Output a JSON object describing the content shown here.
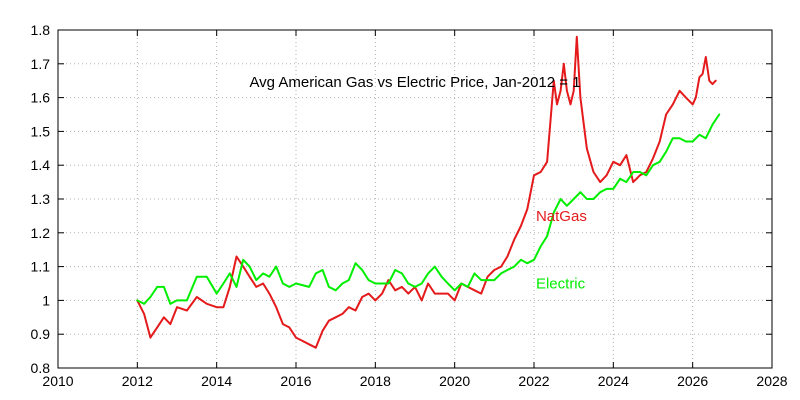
{
  "chart_data": {
    "type": "line",
    "title": "Avg American Gas vs Electric Price, Jan-2012 = 1",
    "xlabel": "",
    "ylabel": "",
    "xlim": [
      2010,
      2028
    ],
    "ylim": [
      0.8,
      1.8
    ],
    "x_ticks": [
      2010,
      2012,
      2014,
      2016,
      2018,
      2020,
      2022,
      2024,
      2026,
      2028
    ],
    "y_ticks": [
      0.8,
      0.9,
      1,
      1.1,
      1.2,
      1.3,
      1.4,
      1.5,
      1.6,
      1.7,
      1.8
    ],
    "y_tick_labels": [
      "0.8",
      "0.9",
      "1",
      "1.1",
      "1.2",
      "1.3",
      "1.4",
      "1.5",
      "1.6",
      "1.7",
      "1.8"
    ],
    "grid": true,
    "legend": "inline labels",
    "series": [
      {
        "name": "NatGas",
        "color": "#e41a1c",
        "label_at": [
          2022.05,
          1.25
        ],
        "points": [
          [
            2012.0,
            1.0
          ],
          [
            2012.17,
            0.96
          ],
          [
            2012.33,
            0.89
          ],
          [
            2012.5,
            0.92
          ],
          [
            2012.67,
            0.95
          ],
          [
            2012.83,
            0.93
          ],
          [
            2013.0,
            0.98
          ],
          [
            2013.25,
            0.97
          ],
          [
            2013.5,
            1.01
          ],
          [
            2013.75,
            0.99
          ],
          [
            2014.0,
            0.98
          ],
          [
            2014.17,
            0.98
          ],
          [
            2014.33,
            1.04
          ],
          [
            2014.5,
            1.13
          ],
          [
            2014.67,
            1.1
          ],
          [
            2014.83,
            1.07
          ],
          [
            2015.0,
            1.04
          ],
          [
            2015.17,
            1.05
          ],
          [
            2015.33,
            1.02
          ],
          [
            2015.5,
            0.98
          ],
          [
            2015.67,
            0.93
          ],
          [
            2015.83,
            0.92
          ],
          [
            2016.0,
            0.89
          ],
          [
            2016.17,
            0.88
          ],
          [
            2016.33,
            0.87
          ],
          [
            2016.5,
            0.86
          ],
          [
            2016.67,
            0.91
          ],
          [
            2016.83,
            0.94
          ],
          [
            2017.0,
            0.95
          ],
          [
            2017.17,
            0.96
          ],
          [
            2017.33,
            0.98
          ],
          [
            2017.5,
            0.97
          ],
          [
            2017.67,
            1.01
          ],
          [
            2017.83,
            1.02
          ],
          [
            2018.0,
            1.0
          ],
          [
            2018.17,
            1.02
          ],
          [
            2018.33,
            1.06
          ],
          [
            2018.5,
            1.03
          ],
          [
            2018.67,
            1.04
          ],
          [
            2018.83,
            1.02
          ],
          [
            2019.0,
            1.04
          ],
          [
            2019.17,
            1.0
          ],
          [
            2019.33,
            1.05
          ],
          [
            2019.5,
            1.02
          ],
          [
            2019.67,
            1.02
          ],
          [
            2019.83,
            1.02
          ],
          [
            2020.0,
            1.0
          ],
          [
            2020.17,
            1.05
          ],
          [
            2020.33,
            1.04
          ],
          [
            2020.5,
            1.03
          ],
          [
            2020.67,
            1.02
          ],
          [
            2020.83,
            1.07
          ],
          [
            2021.0,
            1.09
          ],
          [
            2021.17,
            1.1
          ],
          [
            2021.33,
            1.13
          ],
          [
            2021.5,
            1.18
          ],
          [
            2021.67,
            1.22
          ],
          [
            2021.83,
            1.27
          ],
          [
            2022.0,
            1.37
          ],
          [
            2022.17,
            1.38
          ],
          [
            2022.33,
            1.41
          ],
          [
            2022.5,
            1.65
          ],
          [
            2022.58,
            1.58
          ],
          [
            2022.67,
            1.62
          ],
          [
            2022.75,
            1.7
          ],
          [
            2022.83,
            1.62
          ],
          [
            2022.92,
            1.58
          ],
          [
            2023.0,
            1.62
          ],
          [
            2023.08,
            1.78
          ],
          [
            2023.17,
            1.6
          ],
          [
            2023.33,
            1.45
          ],
          [
            2023.5,
            1.38
          ],
          [
            2023.67,
            1.35
          ],
          [
            2023.83,
            1.37
          ],
          [
            2024.0,
            1.41
          ],
          [
            2024.17,
            1.4
          ],
          [
            2024.33,
            1.43
          ],
          [
            2024.5,
            1.35
          ],
          [
            2024.67,
            1.37
          ],
          [
            2024.83,
            1.38
          ],
          [
            2025.0,
            1.42
          ],
          [
            2025.17,
            1.47
          ],
          [
            2025.33,
            1.55
          ],
          [
            2025.5,
            1.58
          ],
          [
            2025.67,
            1.62
          ],
          [
            2025.83,
            1.6
          ],
          [
            2026.0,
            1.58
          ],
          [
            2026.08,
            1.6
          ],
          [
            2026.17,
            1.66
          ],
          [
            2026.25,
            1.67
          ],
          [
            2026.33,
            1.72
          ],
          [
            2026.42,
            1.65
          ],
          [
            2026.5,
            1.64
          ],
          [
            2026.58,
            1.65
          ]
        ]
      },
      {
        "name": "Electric",
        "color": "#00ee00",
        "label_at": [
          2022.05,
          1.05
        ],
        "points": [
          [
            2012.0,
            1.0
          ],
          [
            2012.17,
            0.99
          ],
          [
            2012.33,
            1.01
          ],
          [
            2012.5,
            1.04
          ],
          [
            2012.67,
            1.04
          ],
          [
            2012.83,
            0.99
          ],
          [
            2013.0,
            1.0
          ],
          [
            2013.25,
            1.0
          ],
          [
            2013.5,
            1.07
          ],
          [
            2013.75,
            1.07
          ],
          [
            2014.0,
            1.02
          ],
          [
            2014.17,
            1.05
          ],
          [
            2014.33,
            1.08
          ],
          [
            2014.5,
            1.04
          ],
          [
            2014.67,
            1.12
          ],
          [
            2014.83,
            1.1
          ],
          [
            2015.0,
            1.06
          ],
          [
            2015.17,
            1.08
          ],
          [
            2015.33,
            1.07
          ],
          [
            2015.5,
            1.1
          ],
          [
            2015.67,
            1.05
          ],
          [
            2015.83,
            1.04
          ],
          [
            2016.0,
            1.05
          ],
          [
            2016.33,
            1.04
          ],
          [
            2016.5,
            1.08
          ],
          [
            2016.67,
            1.09
          ],
          [
            2016.83,
            1.04
          ],
          [
            2017.0,
            1.03
          ],
          [
            2017.17,
            1.05
          ],
          [
            2017.33,
            1.06
          ],
          [
            2017.5,
            1.11
          ],
          [
            2017.67,
            1.09
          ],
          [
            2017.83,
            1.06
          ],
          [
            2018.0,
            1.05
          ],
          [
            2018.17,
            1.05
          ],
          [
            2018.33,
            1.05
          ],
          [
            2018.5,
            1.09
          ],
          [
            2018.67,
            1.08
          ],
          [
            2018.83,
            1.05
          ],
          [
            2019.0,
            1.04
          ],
          [
            2019.17,
            1.05
          ],
          [
            2019.33,
            1.08
          ],
          [
            2019.5,
            1.1
          ],
          [
            2019.67,
            1.07
          ],
          [
            2019.83,
            1.05
          ],
          [
            2020.0,
            1.03
          ],
          [
            2020.17,
            1.05
          ],
          [
            2020.33,
            1.04
          ],
          [
            2020.5,
            1.08
          ],
          [
            2020.67,
            1.06
          ],
          [
            2020.83,
            1.06
          ],
          [
            2021.0,
            1.06
          ],
          [
            2021.17,
            1.08
          ],
          [
            2021.33,
            1.09
          ],
          [
            2021.5,
            1.1
          ],
          [
            2021.67,
            1.12
          ],
          [
            2021.83,
            1.11
          ],
          [
            2022.0,
            1.12
          ],
          [
            2022.17,
            1.16
          ],
          [
            2022.33,
            1.19
          ],
          [
            2022.5,
            1.26
          ],
          [
            2022.67,
            1.3
          ],
          [
            2022.83,
            1.28
          ],
          [
            2023.0,
            1.3
          ],
          [
            2023.17,
            1.32
          ],
          [
            2023.33,
            1.3
          ],
          [
            2023.5,
            1.3
          ],
          [
            2023.67,
            1.32
          ],
          [
            2023.83,
            1.33
          ],
          [
            2024.0,
            1.33
          ],
          [
            2024.17,
            1.36
          ],
          [
            2024.33,
            1.35
          ],
          [
            2024.5,
            1.38
          ],
          [
            2024.67,
            1.38
          ],
          [
            2024.83,
            1.37
          ],
          [
            2025.0,
            1.4
          ],
          [
            2025.17,
            1.41
          ],
          [
            2025.33,
            1.44
          ],
          [
            2025.5,
            1.48
          ],
          [
            2025.67,
            1.48
          ],
          [
            2025.83,
            1.47
          ],
          [
            2026.0,
            1.47
          ],
          [
            2026.17,
            1.49
          ],
          [
            2026.33,
            1.48
          ],
          [
            2026.5,
            1.52
          ],
          [
            2026.67,
            1.55
          ]
        ]
      }
    ]
  }
}
